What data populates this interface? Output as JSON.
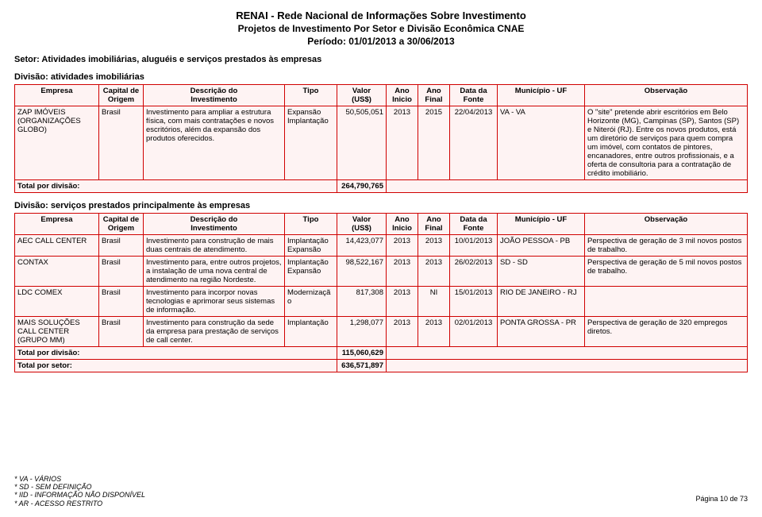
{
  "header": {
    "title1": "RENAI - Rede Nacional de Informações Sobre Investimento",
    "title2": "Projetos de Investimento Por Setor e Divisão Econômica CNAE",
    "period": "Período: 01/01/2013 a 30/06/2013"
  },
  "sector": "Setor:  Atividades imobiliárias, aluguéis e serviços prestados às empresas",
  "div1": {
    "label": "Divisão:  atividades imobiliárias",
    "rows": [
      {
        "empresa": "ZAP IMÓVEIS (ORGANIZAÇÕES GLOBO)",
        "origem": "Brasil",
        "descricao": "Investimento para ampliar a estrutura física, com mais contratações e novos escritórios, além da expansão dos produtos oferecidos.",
        "tipo": "Expansão Implantação",
        "valor": "50,505,051",
        "ano_inicio": "2013",
        "ano_final": "2015",
        "data_fonte": "22/04/2013",
        "municipio": "VA - VA",
        "obs": "O \"site\" pretende abrir escritórios em Belo Horizonte (MG), Campinas (SP), Santos (SP) e Niterói (RJ). Entre os novos produtos, está um diretório de serviços para quem compra um imóvel, com contatos de pintores, encanadores, entre outros profissionais, e a oferta de consultoria para a contratação de crédito imobiliário."
      }
    ],
    "total_label": "Total por divisão:",
    "total_value": "264,790,765"
  },
  "div2": {
    "label": "Divisão:  serviços prestados principalmente às empresas",
    "rows": [
      {
        "empresa": "AEC CALL CENTER",
        "origem": "Brasil",
        "descricao": "Investimento para construção de mais duas centrais de atendimento.",
        "tipo": "Implantação Expansão",
        "valor": "14,423,077",
        "ano_inicio": "2013",
        "ano_final": "2013",
        "data_fonte": "10/01/2013",
        "municipio": "JOÃO PESSOA - PB",
        "obs": "Perspectiva de geração de 3 mil novos postos de trabalho."
      },
      {
        "empresa": "CONTAX",
        "origem": "Brasil",
        "descricao": "Investimento para, entre outros projetos, a instalação de uma nova central de atendimento na região Nordeste.",
        "tipo": "Implantação Expansão",
        "valor": "98,522,167",
        "ano_inicio": "2013",
        "ano_final": "2013",
        "data_fonte": "26/02/2013",
        "municipio": "SD - SD",
        "obs": "Perspectiva de geração de 5 mil novos postos de trabalho."
      },
      {
        "empresa": "LDC COMEX",
        "origem": "Brasil",
        "descricao": "Investimento para incorpor novas tecnologias e aprimorar seus sistemas de informação.",
        "tipo": "Modernização",
        "valor": "817,308",
        "ano_inicio": "2013",
        "ano_final": "NI",
        "data_fonte": "15/01/2013",
        "municipio": "RIO DE JANEIRO - RJ",
        "obs": ""
      },
      {
        "empresa": "MAIS SOLUÇÕES CALL CENTER (GRUPO MM)",
        "origem": "Brasil",
        "descricao": "Investimento para construção da sede da empresa para prestação de serviços de call center.",
        "tipo": "Implantação",
        "valor": "1,298,077",
        "ano_inicio": "2013",
        "ano_final": "2013",
        "data_fonte": "02/01/2013",
        "municipio": "PONTA GROSSA - PR",
        "obs": "Perspectiva de geração de 320 empregos diretos."
      }
    ],
    "total_label": "Total por divisão:",
    "total_value": "115,060,629",
    "sector_total_label": "Total por setor:",
    "sector_total_value": "636,571,897"
  },
  "columns": {
    "empresa": "Empresa",
    "origem_a": "Capital de",
    "origem_b": "Origem",
    "descricao_a": "Descrição do",
    "descricao_b": "Investimento",
    "tipo": "Tipo",
    "valor_a": "Valor",
    "valor_b": "(US$)",
    "ano_i_a": "Ano",
    "ano_i_b": "Inicio",
    "ano_f_a": "Ano",
    "ano_f_b": "Final",
    "data_a": "Data da",
    "data_b": "Fonte",
    "municipio": "Município - UF",
    "obs": "Observação"
  },
  "footnotes": {
    "f1": "* VA - VÁRIOS",
    "f2": "* SD - SEM DEFINIÇÃO",
    "f3": "* IID - INFORMAÇÃO NÃO DISPONÍVEL",
    "f4": "* AR - ACESSO RESTRITO"
  },
  "page": "Página 10 de 73"
}
